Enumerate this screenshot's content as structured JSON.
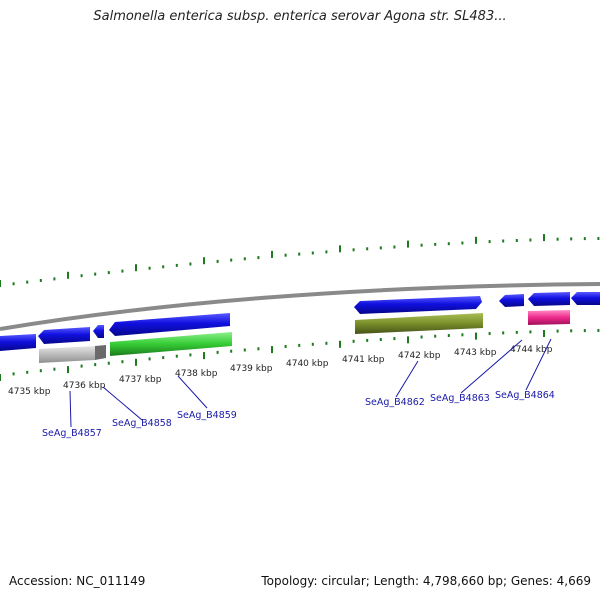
{
  "title": "Salmonella enterica subsp. enterica serovar Agona str. SL483...",
  "footer": {
    "accession": "Accession: NC_011149",
    "summary": "Topology: circular; Length: 4,798,660 bp; Genes: 4,669"
  },
  "kbp_labels": [
    "4735 kbp",
    "4736 kbp",
    "4737 kbp",
    "4738 kbp",
    "4739 kbp",
    "4740 kbp",
    "4741 kbp",
    "4742 kbp",
    "4743 kbp",
    "4744 kbp"
  ],
  "gene_labels": [
    "SeAg_B4857",
    "SeAg_B4858",
    "SeAg_B4859",
    "SeAg_B4862",
    "SeAg_B4863",
    "SeAg_B4864"
  ],
  "colors": {
    "forward_cds": "#1414d2",
    "ticks": "#1e7a1e",
    "backbone": "#8a8a8a",
    "gray_gene": "#b8b8b8",
    "green_gene": "#3ccf3c",
    "olive_gene": "#7a8f2a",
    "pink_gene": "#ee2a8c",
    "label": "#1a1aa8"
  }
}
